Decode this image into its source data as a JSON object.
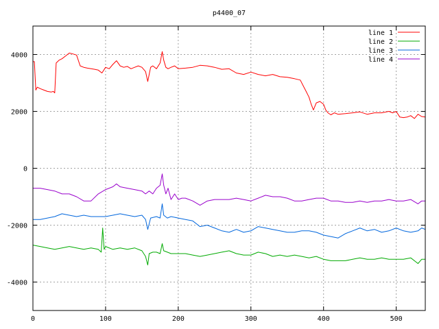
{
  "chart_data": {
    "type": "line",
    "title": "p4400_07",
    "xlabel": "",
    "ylabel": "",
    "xlim": [
      0,
      540
    ],
    "ylim": [
      -5000,
      5000
    ],
    "xticks": [
      0,
      100,
      200,
      300,
      400,
      500
    ],
    "yticks": [
      -4000,
      -2000,
      0,
      2000,
      4000
    ],
    "grid": true,
    "legend_position": "top-right",
    "series": [
      {
        "name": "line 1",
        "color": "#ff0000",
        "x": [
          0,
          2,
          4,
          6,
          10,
          15,
          20,
          25,
          28,
          30,
          32,
          34,
          36,
          40,
          45,
          50,
          55,
          60,
          65,
          70,
          75,
          80,
          85,
          90,
          95,
          100,
          105,
          110,
          115,
          120,
          125,
          130,
          135,
          140,
          145,
          150,
          155,
          158,
          162,
          165,
          170,
          175,
          178,
          180,
          183,
          186,
          190,
          195,
          200,
          210,
          220,
          230,
          240,
          250,
          260,
          270,
          280,
          290,
          300,
          310,
          320,
          330,
          340,
          350,
          360,
          368,
          372,
          376,
          380,
          383,
          386,
          390,
          395,
          400,
          403,
          406,
          410,
          415,
          420,
          430,
          440,
          450,
          460,
          470,
          480,
          490,
          495,
          500,
          505,
          510,
          515,
          520,
          525,
          530,
          535,
          540
        ],
        "y": [
          3750,
          3750,
          2750,
          2850,
          2800,
          2750,
          2700,
          2680,
          2700,
          2650,
          3700,
          3750,
          3800,
          3850,
          3950,
          4050,
          4020,
          3980,
          3600,
          3550,
          3520,
          3500,
          3480,
          3450,
          3350,
          3550,
          3500,
          3650,
          3780,
          3600,
          3550,
          3580,
          3500,
          3550,
          3600,
          3550,
          3400,
          3050,
          3550,
          3600,
          3500,
          3700,
          4100,
          3800,
          3550,
          3500,
          3550,
          3600,
          3500,
          3520,
          3550,
          3620,
          3600,
          3550,
          3480,
          3500,
          3350,
          3300,
          3380,
          3300,
          3250,
          3300,
          3220,
          3200,
          3150,
          3100,
          2900,
          2700,
          2500,
          2250,
          2050,
          2300,
          2350,
          2250,
          2050,
          1950,
          1880,
          1950,
          1900,
          1920,
          1950,
          1980,
          1900,
          1950,
          1950,
          2000,
          1950,
          2000,
          1800,
          1780,
          1800,
          1850,
          1750,
          1900,
          1820,
          1800
        ]
      },
      {
        "name": "line 2",
        "color": "#00aa00",
        "x": [
          0,
          10,
          20,
          30,
          40,
          50,
          60,
          70,
          80,
          90,
          94,
          96,
          98,
          100,
          110,
          120,
          130,
          140,
          150,
          155,
          158,
          160,
          165,
          170,
          175,
          178,
          180,
          185,
          190,
          200,
          210,
          220,
          230,
          240,
          250,
          260,
          270,
          280,
          290,
          300,
          310,
          320,
          330,
          340,
          350,
          360,
          370,
          380,
          390,
          400,
          410,
          420,
          430,
          440,
          450,
          460,
          470,
          480,
          490,
          500,
          510,
          520,
          530,
          535,
          540
        ],
        "y": [
          -2700,
          -2750,
          -2800,
          -2850,
          -2800,
          -2750,
          -2800,
          -2850,
          -2800,
          -2850,
          -2950,
          -2100,
          -2850,
          -2750,
          -2850,
          -2800,
          -2850,
          -2800,
          -2900,
          -3100,
          -3400,
          -3000,
          -2950,
          -2950,
          -3000,
          -2650,
          -2900,
          -2950,
          -3000,
          -3000,
          -3000,
          -3050,
          -3100,
          -3050,
          -3000,
          -2950,
          -2900,
          -3000,
          -3050,
          -3050,
          -2950,
          -3000,
          -3100,
          -3050,
          -3100,
          -3050,
          -3100,
          -3150,
          -3100,
          -3200,
          -3250,
          -3250,
          -3250,
          -3200,
          -3150,
          -3200,
          -3200,
          -3150,
          -3200,
          -3200,
          -3200,
          -3150,
          -3350,
          -3200,
          -3200
        ]
      },
      {
        "name": "line 3",
        "color": "#0066dd",
        "x": [
          0,
          10,
          20,
          30,
          40,
          50,
          60,
          70,
          80,
          90,
          100,
          110,
          120,
          130,
          140,
          150,
          155,
          158,
          162,
          170,
          175,
          178,
          180,
          185,
          190,
          200,
          210,
          220,
          230,
          240,
          250,
          260,
          270,
          280,
          290,
          300,
          310,
          320,
          330,
          340,
          350,
          360,
          370,
          380,
          390,
          400,
          410,
          420,
          430,
          440,
          450,
          460,
          470,
          480,
          490,
          500,
          510,
          520,
          530,
          535,
          540
        ],
        "y": [
          -1800,
          -1800,
          -1750,
          -1700,
          -1600,
          -1650,
          -1700,
          -1650,
          -1700,
          -1700,
          -1700,
          -1650,
          -1600,
          -1650,
          -1700,
          -1650,
          -1800,
          -2150,
          -1750,
          -1700,
          -1750,
          -1250,
          -1650,
          -1750,
          -1700,
          -1750,
          -1800,
          -1850,
          -2050,
          -2000,
          -2100,
          -2200,
          -2250,
          -2150,
          -2250,
          -2200,
          -2050,
          -2100,
          -2150,
          -2200,
          -2250,
          -2250,
          -2200,
          -2200,
          -2250,
          -2350,
          -2400,
          -2450,
          -2300,
          -2200,
          -2100,
          -2200,
          -2150,
          -2250,
          -2200,
          -2100,
          -2200,
          -2250,
          -2200,
          -2100,
          -2150
        ]
      },
      {
        "name": "line 4",
        "color": "#9900cc",
        "x": [
          0,
          10,
          20,
          30,
          40,
          50,
          60,
          70,
          80,
          90,
          100,
          110,
          115,
          120,
          130,
          140,
          150,
          155,
          160,
          165,
          170,
          175,
          178,
          180,
          183,
          186,
          190,
          195,
          200,
          205,
          210,
          220,
          230,
          240,
          250,
          260,
          270,
          280,
          290,
          300,
          310,
          320,
          330,
          340,
          350,
          360,
          370,
          380,
          390,
          400,
          410,
          420,
          430,
          440,
          450,
          460,
          470,
          480,
          490,
          500,
          510,
          520,
          530,
          535,
          540
        ],
        "y": [
          -700,
          -700,
          -750,
          -800,
          -900,
          -900,
          -1000,
          -1150,
          -1150,
          -900,
          -750,
          -650,
          -550,
          -650,
          -700,
          -750,
          -800,
          -900,
          -800,
          -900,
          -700,
          -600,
          -200,
          -600,
          -900,
          -700,
          -1100,
          -900,
          -1100,
          -1050,
          -1050,
          -1150,
          -1300,
          -1150,
          -1100,
          -1100,
          -1100,
          -1050,
          -1100,
          -1150,
          -1050,
          -950,
          -1000,
          -1000,
          -1050,
          -1150,
          -1150,
          -1100,
          -1050,
          -1050,
          -1150,
          -1150,
          -1200,
          -1200,
          -1150,
          -1200,
          -1150,
          -1150,
          -1100,
          -1150,
          -1150,
          -1100,
          -1250,
          -1150,
          -1150
        ]
      }
    ]
  }
}
